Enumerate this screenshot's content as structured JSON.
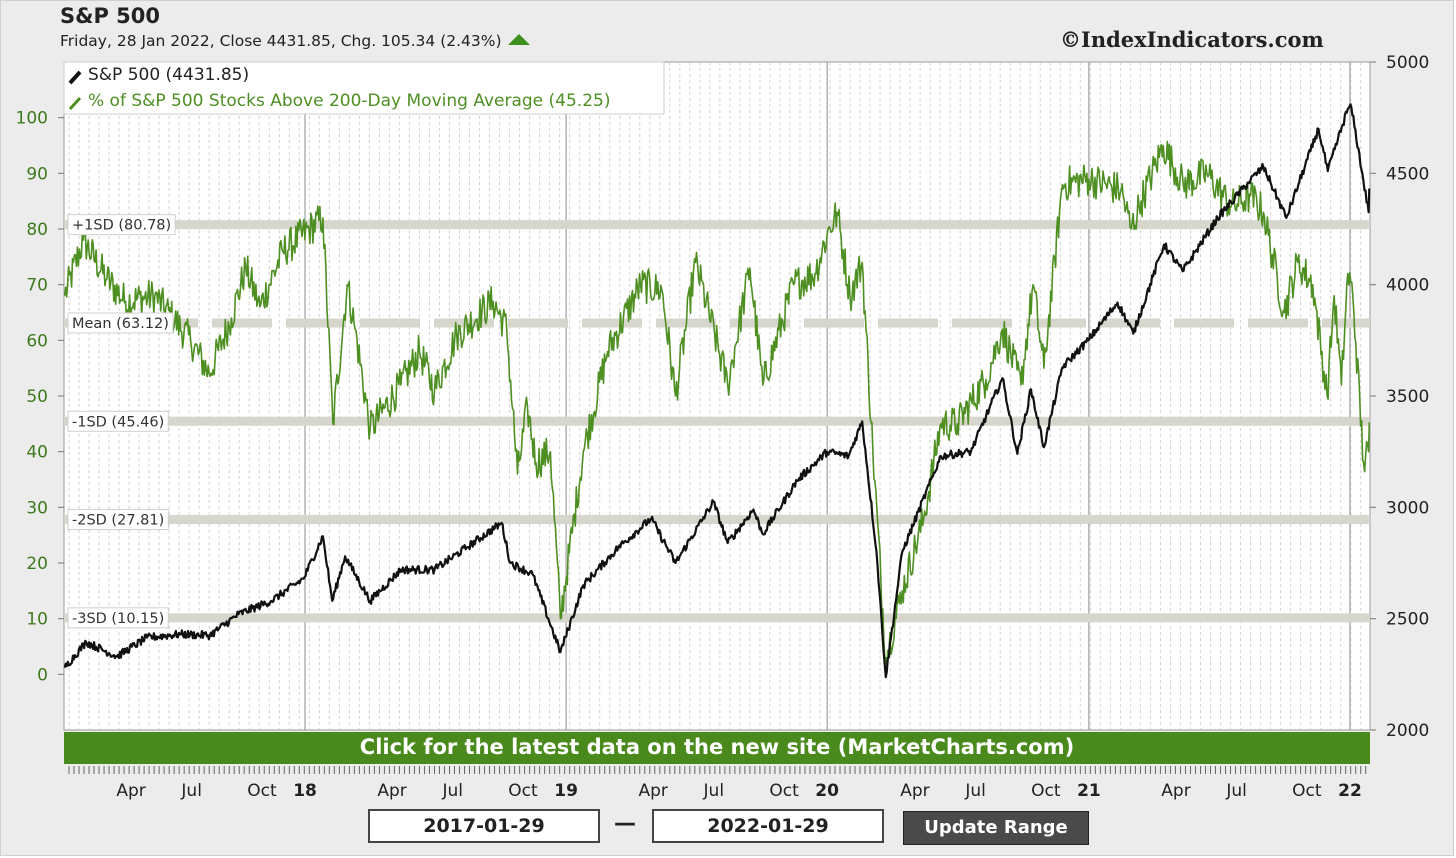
{
  "header": {
    "title": "S&P 500",
    "subtitle": "Friday, 28 Jan 2022, Close 4431.85, Chg. 105.34 (2.43%)",
    "copyright": "©IndexIndicators.com"
  },
  "colors": {
    "price": "#111111",
    "breadth": "#4e8f22",
    "left_axis_text": "#3f7a1d",
    "band": "#d6d6cc",
    "cta_background": "#4a8a1c"
  },
  "chart_data": {
    "type": "line",
    "x_range": [
      "2017-01-29",
      "2022-01-29"
    ],
    "x_tick_labels": [
      "Apr",
      "Jul",
      "Oct",
      "18",
      "Apr",
      "Jul",
      "Oct",
      "19",
      "Apr",
      "Jul",
      "Oct",
      "20",
      "Apr",
      "Jul",
      "Oct",
      "21",
      "Apr",
      "Jul",
      "Oct",
      "22"
    ],
    "y_left": {
      "range": [
        -10,
        110
      ],
      "ticks": [
        0,
        10,
        20,
        30,
        40,
        50,
        60,
        70,
        80,
        90,
        100
      ]
    },
    "y_right": {
      "range": [
        2000,
        5000
      ],
      "ticks": [
        2000,
        2500,
        3000,
        3500,
        4000,
        4500,
        5000
      ]
    },
    "legend": {
      "position": "top-left",
      "entries": [
        "S&P 500 (4431.85)",
        "% of S&P 500 Stocks Above 200-Day Moving Average (45.25)"
      ]
    },
    "reference_bands": [
      {
        "label": "+1SD (80.78)",
        "value": 80.78
      },
      {
        "label": "Mean (63.12)",
        "value": 63.12,
        "style": "dashed"
      },
      {
        "label": "-1SD (45.46)",
        "value": 45.46
      },
      {
        "label": "-2SD (27.81)",
        "value": 27.81
      },
      {
        "label": "-3SD (10.15)",
        "value": 10.15
      }
    ],
    "series": [
      {
        "name": "S&P 500 (4431.85)",
        "axis": "right",
        "points": [
          [
            "2017-01-30",
            2280
          ],
          [
            "2017-03-01",
            2395
          ],
          [
            "2017-04-13",
            2330
          ],
          [
            "2017-05-25",
            2415
          ],
          [
            "2017-07-10",
            2430
          ],
          [
            "2017-08-21",
            2425
          ],
          [
            "2017-09-30",
            2520
          ],
          [
            "2017-11-15",
            2580
          ],
          [
            "2017-12-30",
            2680
          ],
          [
            "2018-01-26",
            2870
          ],
          [
            "2018-02-08",
            2580
          ],
          [
            "2018-02-26",
            2780
          ],
          [
            "2018-04-02",
            2580
          ],
          [
            "2018-05-15",
            2720
          ],
          [
            "2018-07-01",
            2720
          ],
          [
            "2018-08-15",
            2820
          ],
          [
            "2018-10-03",
            2930
          ],
          [
            "2018-10-15",
            2750
          ],
          [
            "2018-11-15",
            2700
          ],
          [
            "2018-12-24",
            2350
          ],
          [
            "2019-01-25",
            2650
          ],
          [
            "2019-03-15",
            2820
          ],
          [
            "2019-04-30",
            2950
          ],
          [
            "2019-06-03",
            2750
          ],
          [
            "2019-07-26",
            3025
          ],
          [
            "2019-08-15",
            2840
          ],
          [
            "2019-09-20",
            2990
          ],
          [
            "2019-10-03",
            2880
          ],
          [
            "2019-11-20",
            3120
          ],
          [
            "2020-01-01",
            3250
          ],
          [
            "2020-01-31",
            3230
          ],
          [
            "2020-02-19",
            3386
          ],
          [
            "2020-03-10",
            2800
          ],
          [
            "2020-03-23",
            2237
          ],
          [
            "2020-04-15",
            2800
          ],
          [
            "2020-06-08",
            3230
          ],
          [
            "2020-07-20",
            3250
          ],
          [
            "2020-09-02",
            3580
          ],
          [
            "2020-09-23",
            3240
          ],
          [
            "2020-10-12",
            3530
          ],
          [
            "2020-10-30",
            3270
          ],
          [
            "2020-11-25",
            3630
          ],
          [
            "2020-12-31",
            3750
          ],
          [
            "2021-02-10",
            3920
          ],
          [
            "2021-03-04",
            3780
          ],
          [
            "2021-04-16",
            4180
          ],
          [
            "2021-05-12",
            4060
          ],
          [
            "2021-06-30",
            4300
          ],
          [
            "2021-08-15",
            4470
          ],
          [
            "2021-09-02",
            4530
          ],
          [
            "2021-10-04",
            4300
          ],
          [
            "2021-11-18",
            4700
          ],
          [
            "2021-12-01",
            4510
          ],
          [
            "2021-12-29",
            4790
          ],
          [
            "2022-01-03",
            4796
          ],
          [
            "2022-01-27",
            4326
          ],
          [
            "2022-01-28",
            4431.85
          ]
        ]
      },
      {
        "name": "% of S&P 500 Stocks Above 200-Day Moving Average (45.25)",
        "axis": "left",
        "points": [
          [
            "2017-01-30",
            68
          ],
          [
            "2017-02-25",
            78
          ],
          [
            "2017-03-30",
            71
          ],
          [
            "2017-04-25",
            67
          ],
          [
            "2017-06-05",
            68
          ],
          [
            "2017-07-25",
            60
          ],
          [
            "2017-08-20",
            54
          ],
          [
            "2017-09-20",
            64
          ],
          [
            "2017-10-10",
            73
          ],
          [
            "2017-10-30",
            66
          ],
          [
            "2017-12-01",
            76
          ],
          [
            "2018-01-26",
            82
          ],
          [
            "2018-02-09",
            45
          ],
          [
            "2018-03-01",
            70
          ],
          [
            "2018-03-12",
            62
          ],
          [
            "2018-04-02",
            44
          ],
          [
            "2018-05-15",
            52
          ],
          [
            "2018-06-10",
            58
          ],
          [
            "2018-07-01",
            51
          ],
          [
            "2018-08-01",
            61
          ],
          [
            "2018-09-21",
            67
          ],
          [
            "2018-10-10",
            62
          ],
          [
            "2018-10-25",
            36
          ],
          [
            "2018-11-08",
            48
          ],
          [
            "2018-11-20",
            38
          ],
          [
            "2018-12-10",
            40
          ],
          [
            "2018-12-24",
            10
          ],
          [
            "2019-01-25",
            40
          ],
          [
            "2019-02-28",
            58
          ],
          [
            "2019-04-15",
            70
          ],
          [
            "2019-05-15",
            69
          ],
          [
            "2019-06-03",
            50
          ],
          [
            "2019-07-01",
            74
          ],
          [
            "2019-08-15",
            52
          ],
          [
            "2019-09-15",
            73
          ],
          [
            "2019-10-03",
            52
          ],
          [
            "2019-11-15",
            70
          ],
          [
            "2019-12-15",
            72
          ],
          [
            "2020-01-01",
            79
          ],
          [
            "2020-01-15",
            83
          ],
          [
            "2020-02-02",
            68
          ],
          [
            "2020-02-19",
            74
          ],
          [
            "2020-03-05",
            40
          ],
          [
            "2020-03-23",
            3
          ],
          [
            "2020-04-15",
            15
          ],
          [
            "2020-05-15",
            28
          ],
          [
            "2020-06-08",
            45
          ],
          [
            "2020-07-01",
            45
          ],
          [
            "2020-08-10",
            53
          ],
          [
            "2020-09-02",
            62
          ],
          [
            "2020-09-28",
            52
          ],
          [
            "2020-10-15",
            70
          ],
          [
            "2020-10-30",
            55
          ],
          [
            "2020-11-25",
            88
          ],
          [
            "2021-01-01",
            89
          ],
          [
            "2021-02-15",
            87
          ],
          [
            "2021-03-01",
            80
          ],
          [
            "2021-03-15",
            85
          ],
          [
            "2021-04-15",
            95
          ],
          [
            "2021-05-13",
            88
          ],
          [
            "2021-06-15",
            90
          ],
          [
            "2021-07-19",
            84
          ],
          [
            "2021-08-15",
            86
          ],
          [
            "2021-09-02",
            83
          ],
          [
            "2021-10-01",
            65
          ],
          [
            "2021-10-20",
            74
          ],
          [
            "2021-11-10",
            70
          ],
          [
            "2021-11-30",
            50
          ],
          [
            "2021-12-10",
            68
          ],
          [
            "2021-12-20",
            52
          ],
          [
            "2021-12-29",
            72
          ],
          [
            "2022-01-05",
            68
          ],
          [
            "2022-01-20",
            38
          ],
          [
            "2022-01-27",
            40
          ],
          [
            "2022-01-28",
            45.25
          ]
        ]
      }
    ]
  },
  "banner": {
    "cta_text": "Click for the latest data on the new site (MarketCharts.com)"
  },
  "range": {
    "start": "2017-01-29",
    "separator": "—",
    "end": "2022-01-29",
    "update_label": "Update Range"
  }
}
